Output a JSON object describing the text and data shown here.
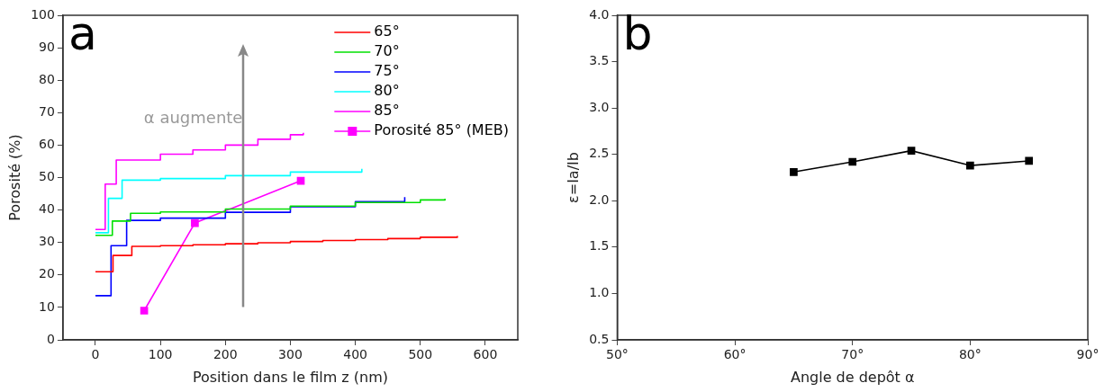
{
  "chart_data": [
    {
      "type": "step",
      "xlabel": "Position dans le film z (nm)",
      "ylabel": "Porosité (%)",
      "xlim": [
        -50,
        650
      ],
      "xticks": [
        0,
        100,
        200,
        300,
        400,
        500,
        600
      ],
      "ylim": [
        0,
        100
      ],
      "yticks": [
        0,
        10,
        20,
        30,
        40,
        50,
        60,
        70,
        80,
        90,
        100
      ],
      "grid": false,
      "legend": "top right",
      "marker": "none",
      "annotations": [
        "a",
        "α augmente"
      ],
      "series": [
        {
          "name": "65°",
          "color": "#ff0000",
          "x": [
            0,
            27,
            56,
            100,
            150,
            200,
            250,
            300,
            350,
            400,
            450,
            500,
            557
          ],
          "values": [
            21,
            26,
            28.8,
            29,
            29.3,
            29.6,
            29.9,
            30.3,
            30.6,
            30.9,
            31.2,
            31.6,
            32
          ]
        },
        {
          "name": "70°",
          "color": "#00e000",
          "x": [
            0,
            26,
            54,
            100,
            200,
            300,
            400,
            500,
            538
          ],
          "values": [
            32.2,
            36.6,
            39,
            39.4,
            40.3,
            41.2,
            42.3,
            43.1,
            43.5
          ]
        },
        {
          "name": "75°",
          "color": "#0000ff",
          "x": [
            0,
            24,
            48,
            100,
            200,
            300,
            400,
            476
          ],
          "values": [
            13.6,
            29,
            36.8,
            37.5,
            39.3,
            41,
            42.6,
            44
          ]
        },
        {
          "name": "80°",
          "color": "#00ffff",
          "x": [
            0,
            20,
            41,
            100,
            200,
            300,
            410
          ],
          "values": [
            33,
            43.6,
            49.2,
            49.7,
            50.6,
            51.7,
            52.7
          ]
        },
        {
          "name": "85°",
          "color": "#ff00ff",
          "x": [
            0,
            15,
            32,
            100,
            150,
            200,
            250,
            300,
            320
          ],
          "values": [
            34,
            48,
            55.4,
            57.2,
            58.5,
            60,
            61.8,
            63.2,
            63.8
          ]
        },
        {
          "name": "Porosité 85° (MEB)",
          "type": "line",
          "marker": "square",
          "color": "#ff00ff",
          "x": [
            75,
            153,
            316
          ],
          "values": [
            9,
            36,
            49
          ]
        }
      ]
    },
    {
      "type": "line",
      "xlabel": "Angle de depôt α",
      "ylabel": "ε=Ia/Ib",
      "xlim": [
        50,
        90
      ],
      "xticks": [
        {
          "value": 50,
          "label": "50°"
        },
        {
          "value": 60,
          "label": "60°"
        },
        {
          "value": 70,
          "label": "70°"
        },
        {
          "value": 80,
          "label": "80°"
        },
        {
          "value": 90,
          "label": "90°"
        }
      ],
      "ylim": [
        0.5,
        4.0
      ],
      "yticks": [
        {
          "value": 0.5,
          "label": "0.5"
        },
        {
          "value": 1.0,
          "label": "1.0"
        },
        {
          "value": 1.5,
          "label": "1.5"
        },
        {
          "value": 2.0,
          "label": "2.0"
        },
        {
          "value": 2.5,
          "label": "2.5"
        },
        {
          "value": 3.0,
          "label": "3.0"
        },
        {
          "value": 3.5,
          "label": "3.5"
        },
        {
          "value": 4.0,
          "label": "4.0"
        }
      ],
      "grid": false,
      "legend": false,
      "marker": "square",
      "annotations": [
        "b"
      ],
      "x": [
        65,
        70,
        75,
        80,
        85
      ],
      "series": [
        {
          "color": "#000000",
          "values": [
            2.31,
            2.42,
            2.54,
            2.38,
            2.43
          ]
        }
      ]
    }
  ]
}
